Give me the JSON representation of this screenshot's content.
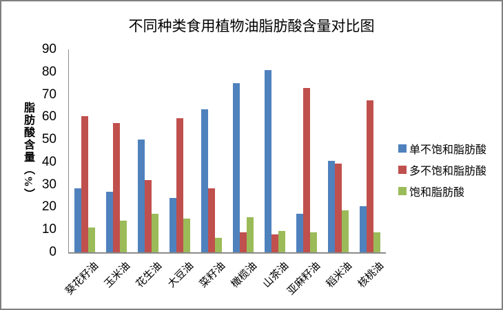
{
  "chart_data": {
    "type": "bar",
    "title": "不同种类食用植物油脂肪酸含量对比图",
    "xlabel": "",
    "ylabel": "脂肪酸含量（%）",
    "ylim": [
      0,
      90
    ],
    "ytick_step": 10,
    "grid": false,
    "legend_position": "right",
    "categories": [
      "葵花籽油",
      "玉米油",
      "花生油",
      "大豆油",
      "菜籽油",
      "橄榄油",
      "山茶油",
      "亚麻籽油",
      "稻米油",
      "核桃油"
    ],
    "series": [
      {
        "name": "单不饱和脂肪酸",
        "color": "#4F81BD",
        "values": [
          28.5,
          27,
          50,
          24,
          63.5,
          75,
          81,
          17,
          40.5,
          20.5
        ]
      },
      {
        "name": "多不饱和脂肪酸",
        "color": "#C0504D",
        "values": [
          60.5,
          57.5,
          32,
          59.5,
          28.5,
          9,
          8,
          73,
          39.5,
          67.5
        ]
      },
      {
        "name": "饱和脂肪酸",
        "color": "#9BBB59",
        "values": [
          11,
          14,
          17,
          15,
          6.5,
          15.5,
          9.5,
          9,
          18.5,
          9
        ]
      }
    ]
  },
  "colors": {
    "axis_line": "#8a8a8a",
    "frame_border": "#7f7f7f",
    "text": "#000000",
    "background": "#ffffff"
  }
}
